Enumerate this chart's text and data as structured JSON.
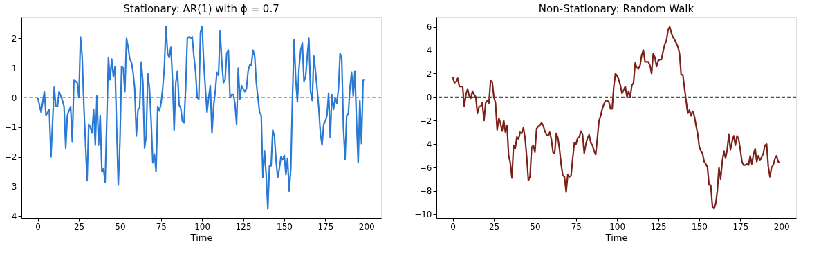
{
  "chart_data": [
    {
      "type": "line",
      "title": "Stationary: AR(1) with ϕ = 0.7",
      "xlabel": "Time",
      "xlim": [
        -9.95,
        208.95
      ],
      "xticks": [
        0,
        25,
        50,
        75,
        100,
        125,
        150,
        175,
        200
      ],
      "ylim": [
        -4.06,
        2.71
      ],
      "yticks": [
        -4,
        -3,
        -2,
        -1,
        0,
        1,
        2
      ],
      "grid": false,
      "legend": false,
      "line_style": "solid",
      "ref_lines": [
        {
          "axis": "y",
          "value": 0,
          "color": "#555555",
          "line_style": "dashed"
        }
      ],
      "series": [
        {
          "color": "#2a7ad5",
          "x": [
            0,
            2,
            4,
            5,
            7,
            8,
            10,
            11,
            12,
            13,
            15,
            16,
            17,
            18,
            20,
            21,
            22,
            24,
            25,
            26,
            27,
            28,
            30,
            31,
            32,
            33,
            34,
            35,
            36,
            37,
            38,
            39,
            40,
            41,
            43,
            44,
            45,
            46,
            47,
            48,
            49,
            50,
            51,
            52,
            53,
            54,
            55,
            56,
            57,
            58,
            59,
            60,
            61,
            62,
            63,
            64,
            65,
            66,
            67,
            68,
            69,
            70,
            71,
            72,
            73,
            74,
            75,
            76,
            77,
            78,
            79,
            80,
            81,
            82,
            83,
            84,
            85,
            86,
            87,
            88,
            89,
            90,
            91,
            92,
            93,
            94,
            95,
            96,
            97,
            98,
            99,
            100,
            101,
            102,
            103,
            104,
            105,
            106,
            107,
            108,
            109,
            110,
            111,
            112,
            113,
            114,
            115,
            116,
            117,
            118,
            119,
            120,
            121,
            122,
            123,
            124,
            125,
            126,
            127,
            128,
            129,
            130,
            131,
            132,
            133,
            134,
            135,
            136,
            137,
            138,
            139,
            140,
            141,
            142,
            143,
            144,
            145,
            146,
            147,
            148,
            149,
            150,
            151,
            152,
            153,
            154,
            155,
            156,
            157,
            158,
            159,
            160,
            161,
            162,
            163,
            164,
            165,
            166,
            167,
            168,
            169,
            170,
            171,
            172,
            173,
            174,
            175,
            176,
            177,
            178,
            179,
            180,
            181,
            182,
            183,
            184,
            185,
            186,
            187,
            188,
            189,
            190,
            191,
            192,
            193,
            194,
            195,
            196,
            197,
            198,
            199
          ],
          "values": [
            0,
            -0.5,
            0.2,
            -0.6,
            -0.4,
            -2.0,
            0.35,
            -0.3,
            -0.3,
            0.2,
            -0.1,
            -0.3,
            -1.7,
            -0.6,
            -0.3,
            -1.5,
            0.6,
            0.5,
            0.0,
            2.05,
            1.4,
            -0.2,
            -2.8,
            -0.9,
            -1.0,
            -1.2,
            -0.4,
            -1.6,
            0.05,
            -1.6,
            -0.6,
            -2.5,
            -2.4,
            -2.85,
            1.35,
            0.6,
            1.3,
            0.7,
            1.05,
            -1.0,
            -2.95,
            -1.5,
            1.05,
            1.0,
            0.2,
            2.0,
            1.7,
            1.3,
            1.2,
            0.85,
            0.3,
            -1.3,
            -0.4,
            -0.35,
            1.2,
            0.5,
            -1.7,
            -1.3,
            0.8,
            0.3,
            -0.8,
            -2.2,
            -1.9,
            -2.5,
            -0.3,
            -0.45,
            -0.2,
            0.3,
            1.0,
            2.4,
            1.5,
            1.35,
            1.7,
            0.6,
            -1.1,
            0.5,
            0.9,
            -0.25,
            -0.35,
            -0.8,
            -0.85,
            0.3,
            2.0,
            2.05,
            2.0,
            2.05,
            1.4,
            0.9,
            0.0,
            -0.05,
            2.2,
            2.4,
            1.2,
            0.3,
            -0.5,
            0.0,
            0.4,
            -1.2,
            -0.3,
            0.2,
            0.85,
            0.75,
            2.25,
            1.2,
            0.5,
            0.6,
            1.5,
            1.6,
            0.0,
            0.1,
            0.1,
            -0.2,
            -0.9,
            1.0,
            -0.05,
            0.4,
            0.3,
            0.2,
            0.3,
            0.9,
            1.1,
            1.1,
            1.6,
            1.4,
            0.5,
            0.0,
            -0.5,
            -0.6,
            -2.7,
            -1.8,
            -2.6,
            -3.75,
            -2.3,
            -2.3,
            -1.1,
            -1.3,
            -2.1,
            -2.7,
            -2.4,
            -2.0,
            -2.1,
            -1.95,
            -2.6,
            -2.05,
            -3.15,
            -2.4,
            0.0,
            1.95,
            0.6,
            -0.15,
            1.0,
            1.6,
            1.85,
            0.55,
            0.7,
            1.4,
            2.0,
            0.2,
            -0.1,
            1.4,
            0.9,
            0.3,
            -0.35,
            -1.2,
            -1.6,
            -0.9,
            -0.8,
            -0.6,
            0.15,
            -1.35,
            0.1,
            -0.4,
            0.0,
            -0.2,
            0.3,
            1.5,
            1.3,
            -1.0,
            -2.1,
            -0.6,
            -0.55,
            0.35,
            0.85,
            0.05,
            0.9,
            -0.8,
            -2.2,
            -0.1,
            -1.55,
            0.6,
            0.6
          ]
        }
      ]
    },
    {
      "type": "line",
      "title": "Non-Stationary: Random Walk",
      "xlabel": "Time",
      "xlim": [
        -9.95,
        208.95
      ],
      "xticks": [
        0,
        25,
        50,
        75,
        100,
        125,
        150,
        175,
        200
      ],
      "ylim": [
        -10.3,
        6.8
      ],
      "yticks": [
        -10,
        -8,
        -6,
        -4,
        -2,
        0,
        2,
        4,
        6
      ],
      "grid": false,
      "legend": false,
      "line_style": "solid",
      "ref_lines": [
        {
          "axis": "y",
          "value": 0,
          "color": "#555555",
          "line_style": "dashed"
        }
      ],
      "series": [
        {
          "color": "#7b2018",
          "x": [
            0,
            1,
            2,
            3,
            4,
            5,
            6,
            7,
            8,
            9,
            10,
            11,
            12,
            13,
            14,
            15,
            16,
            17,
            18,
            19,
            20,
            21,
            22,
            23,
            24,
            25,
            26,
            27,
            28,
            29,
            30,
            31,
            32,
            33,
            34,
            35,
            36,
            37,
            38,
            39,
            40,
            41,
            42,
            43,
            44,
            45,
            46,
            47,
            48,
            49,
            50,
            51,
            52,
            53,
            54,
            55,
            56,
            57,
            58,
            59,
            60,
            61,
            62,
            63,
            64,
            65,
            66,
            67,
            68,
            69,
            70,
            71,
            72,
            73,
            74,
            75,
            76,
            77,
            78,
            79,
            80,
            81,
            82,
            83,
            84,
            85,
            86,
            87,
            88,
            89,
            90,
            91,
            92,
            93,
            94,
            95,
            96,
            97,
            98,
            99,
            100,
            101,
            102,
            103,
            104,
            105,
            106,
            107,
            108,
            109,
            110,
            111,
            112,
            113,
            114,
            115,
            116,
            117,
            118,
            119,
            120,
            121,
            122,
            123,
            124,
            125,
            126,
            127,
            128,
            129,
            130,
            131,
            132,
            133,
            134,
            135,
            136,
            137,
            138,
            139,
            140,
            141,
            142,
            143,
            144,
            145,
            146,
            147,
            148,
            149,
            150,
            151,
            152,
            153,
            154,
            155,
            156,
            157,
            158,
            159,
            160,
            161,
            162,
            163,
            164,
            165,
            166,
            167,
            168,
            169,
            170,
            171,
            172,
            173,
            174,
            175,
            176,
            177,
            178,
            179,
            180,
            181,
            182,
            183,
            184,
            185,
            186,
            187,
            188,
            189,
            190,
            191,
            192,
            193,
            194,
            195,
            196,
            197,
            198,
            199
          ],
          "values": [
            1.7,
            1.2,
            1.3,
            1.6,
            0.9,
            0.9,
            0.9,
            -0.8,
            0.2,
            0.7,
            0.1,
            -0.1,
            0.5,
            0.2,
            0.0,
            -1.4,
            -0.8,
            -0.8,
            -0.5,
            -2.0,
            -0.5,
            -0.3,
            -0.5,
            1.4,
            1.3,
            0.0,
            -0.5,
            -2.8,
            -1.8,
            -2.2,
            -2.9,
            -2.0,
            -3.0,
            -2.4,
            -5.0,
            -5.6,
            -6.9,
            -4.1,
            -4.4,
            -3.4,
            -3.6,
            -3.0,
            -3.1,
            -2.6,
            -3.5,
            -5.1,
            -7.1,
            -6.8,
            -4.3,
            -4.1,
            -4.7,
            -2.7,
            -2.5,
            -2.4,
            -2.2,
            -2.4,
            -2.9,
            -3.2,
            -3.3,
            -3.0,
            -3.6,
            -4.7,
            -4.8,
            -3.1,
            -3.5,
            -4.5,
            -5.8,
            -6.7,
            -6.8,
            -8.1,
            -6.6,
            -6.8,
            -6.7,
            -5.2,
            -3.9,
            -4.0,
            -3.5,
            -3.4,
            -2.9,
            -3.2,
            -4.8,
            -4.0,
            -3.5,
            -3.2,
            -3.9,
            -4.1,
            -4.6,
            -4.9,
            -3.5,
            -2.0,
            -1.6,
            -1.0,
            -0.6,
            -0.3,
            -0.3,
            -0.4,
            -1.0,
            -1.0,
            0.9,
            2.0,
            1.8,
            1.5,
            1.0,
            0.3,
            0.6,
            0.9,
            0.0,
            0.5,
            0.0,
            1.0,
            1.2,
            2.9,
            2.5,
            2.4,
            2.7,
            3.6,
            4.0,
            3.0,
            3.0,
            3.0,
            2.7,
            2.0,
            3.7,
            3.4,
            2.6,
            3.1,
            3.2,
            3.2,
            3.9,
            4.5,
            4.8,
            5.7,
            6.0,
            5.5,
            5.1,
            4.9,
            4.6,
            4.3,
            3.7,
            1.9,
            1.9,
            0.8,
            -0.3,
            -1.4,
            -1.1,
            -1.6,
            -1.2,
            -1.6,
            -2.4,
            -3.1,
            -4.2,
            -4.6,
            -4.8,
            -5.5,
            -5.7,
            -6.0,
            -7.5,
            -7.5,
            -9.3,
            -9.5,
            -9.1,
            -8.0,
            -6.0,
            -7.0,
            -5.5,
            -4.6,
            -5.2,
            -4.5,
            -3.2,
            -4.5,
            -3.8,
            -3.3,
            -4.1,
            -3.3,
            -3.6,
            -4.5,
            -5.5,
            -5.8,
            -5.8,
            -5.7,
            -5.8,
            -5.0,
            -5.7,
            -4.9,
            -4.4,
            -5.5,
            -5.0,
            -5.4,
            -5.1,
            -4.8,
            -4.1,
            -4.0,
            -5.9,
            -6.8,
            -6.0,
            -5.8,
            -5.3,
            -5.0,
            -5.5,
            -5.6
          ]
        }
      ]
    }
  ]
}
